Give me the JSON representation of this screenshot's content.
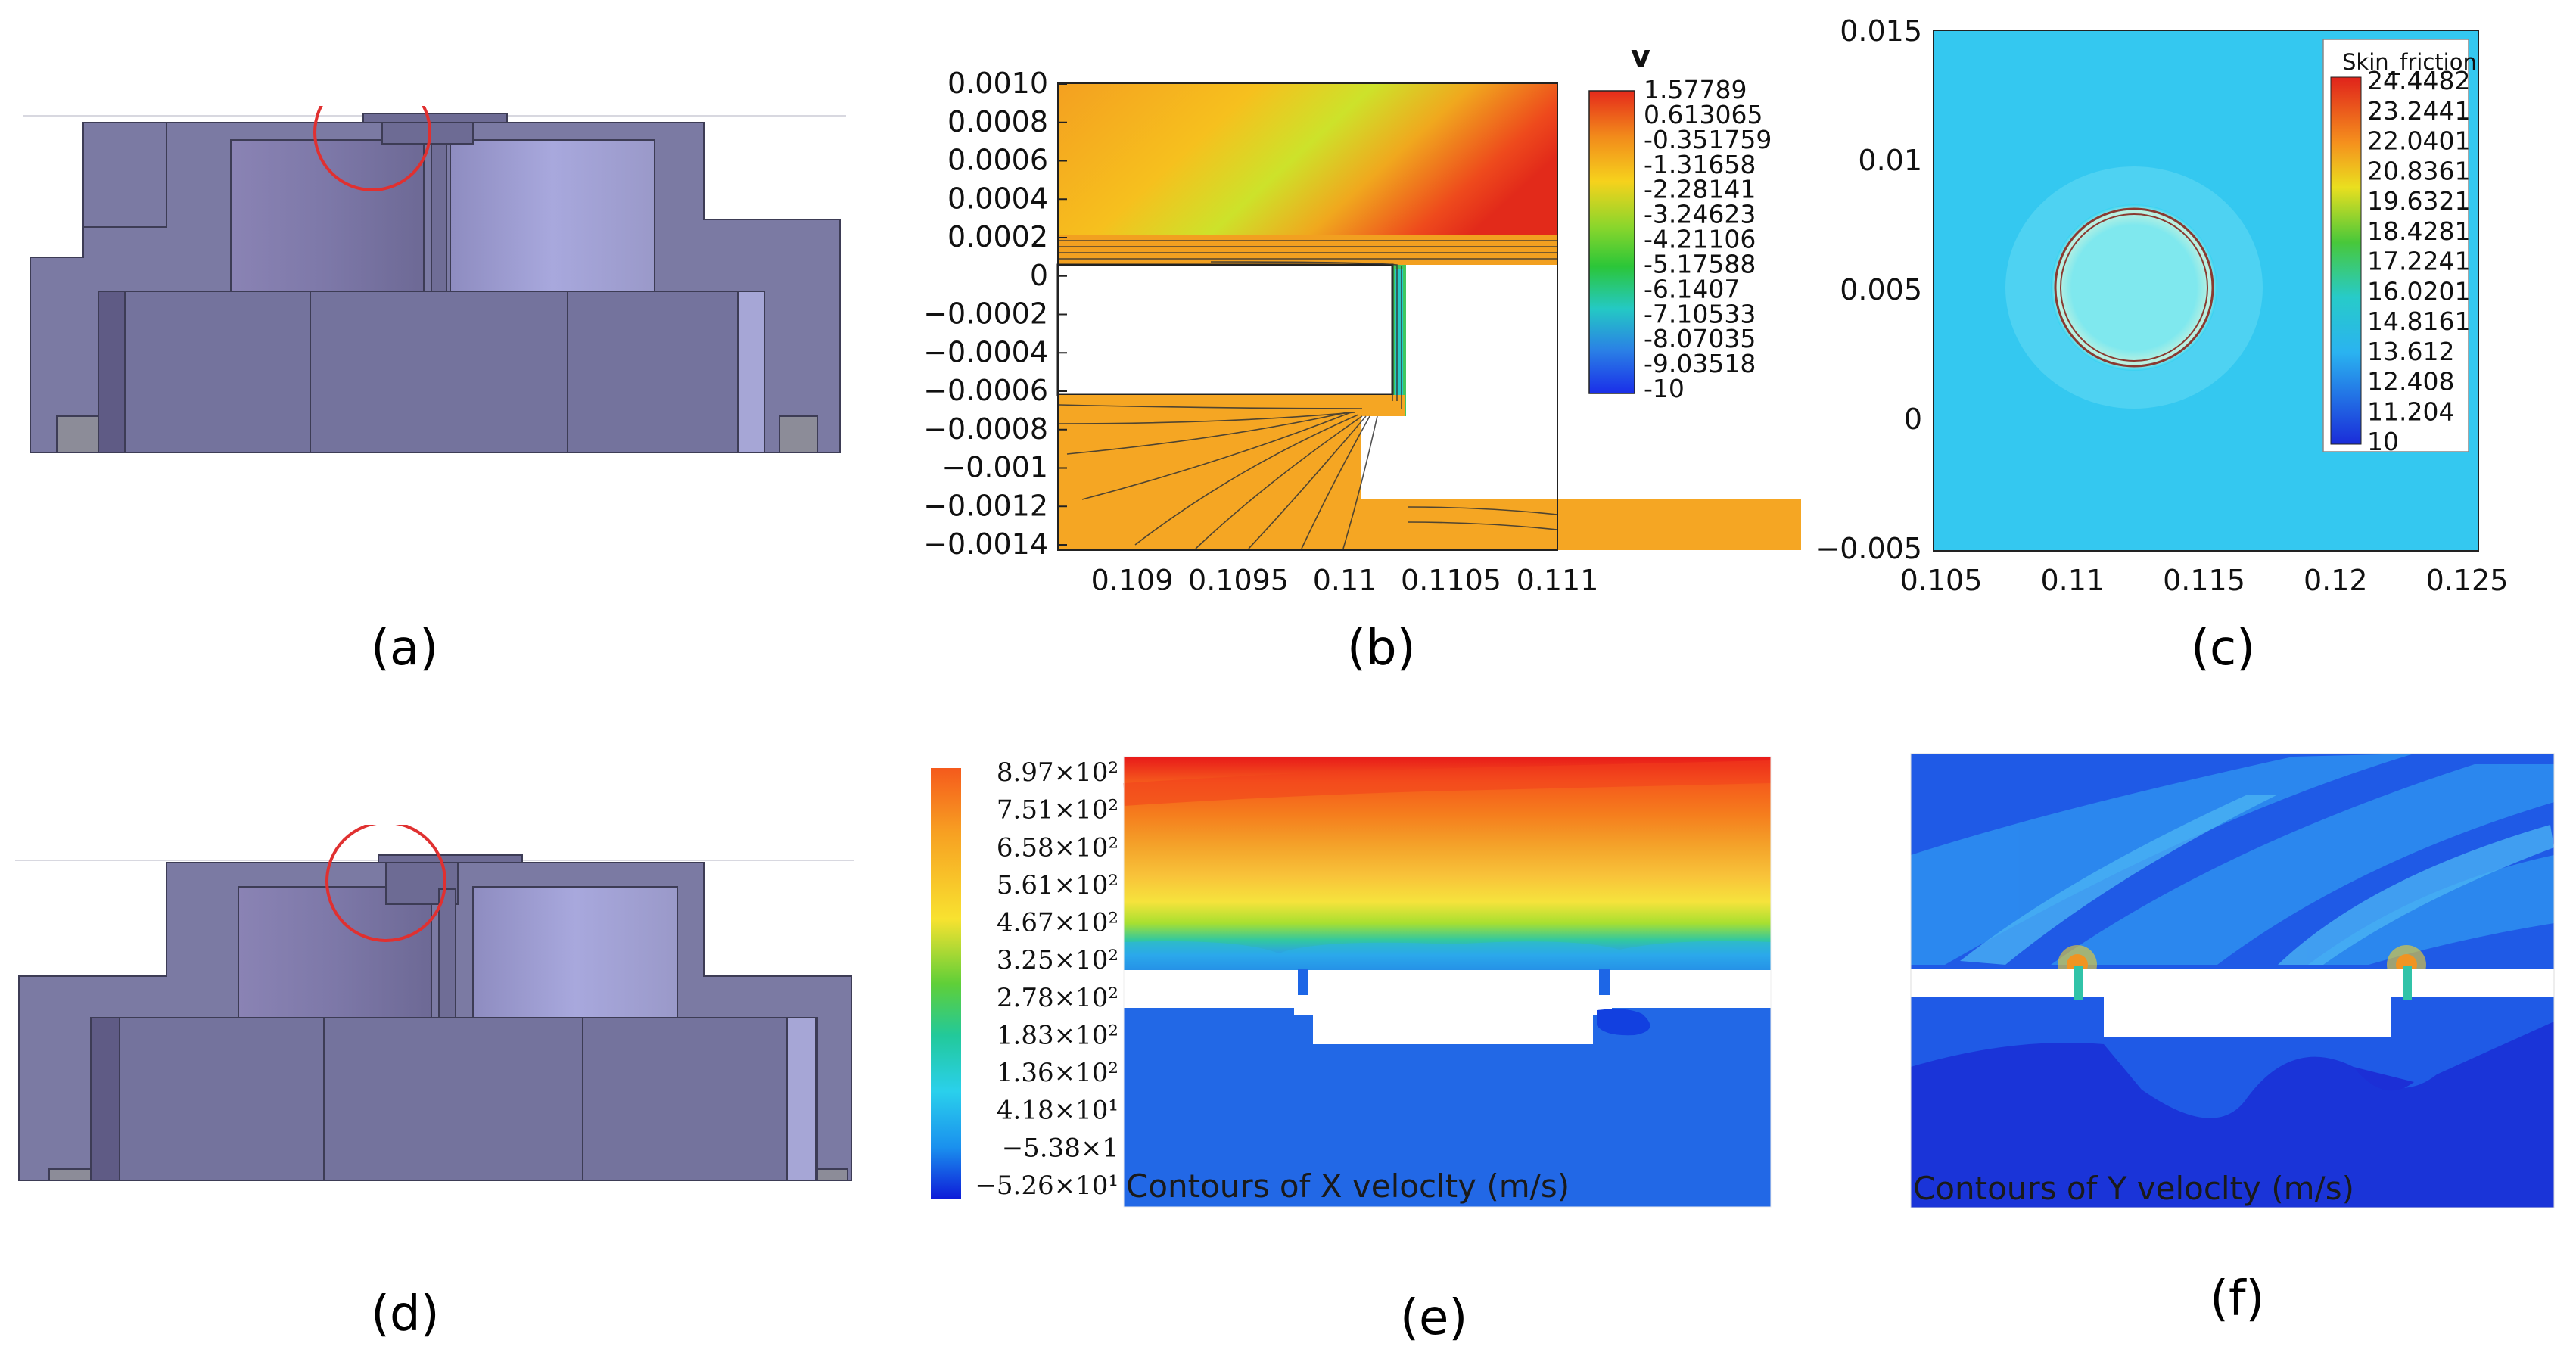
{
  "captions": [
    "(a)",
    "(b)",
    "(c)",
    "(d)",
    "(e)",
    "(f)"
  ],
  "panel_b": {
    "colorbar_title": "v",
    "colorbar_ticks": [
      "1.57789",
      "0.613065",
      "-0.351759",
      "-1.31658",
      "-2.28141",
      "-3.24623",
      "-4.21106",
      "-5.17588",
      "-6.1407",
      "-7.10533",
      "-8.07035",
      "-9.03518",
      "-10"
    ],
    "y_ticks": [
      "0.0010",
      "0.0008",
      "0.0006",
      "0.0004",
      "0.0002",
      "0",
      "−0.0002",
      "−0.0004",
      "−0.0006",
      "−0.0008",
      "−0.001",
      "−0.0012",
      "−0.0014"
    ],
    "x_ticks": [
      "0.109",
      "0.1095",
      "0.11",
      "0.1105",
      "0.111"
    ]
  },
  "panel_c": {
    "legend_title": "Skin_friction",
    "legend_ticks": [
      "24.4482",
      "23.2441",
      "22.0401",
      "20.8361",
      "19.6321",
      "18.4281",
      "17.2241",
      "16.0201",
      "14.8161",
      "13.612",
      "12.408",
      "11.204",
      "10"
    ],
    "y_ticks": [
      "0.015",
      "0.01",
      "0.005",
      "0",
      "−0.005"
    ],
    "x_ticks": [
      "0.105",
      "0.11",
      "0.115",
      "0.12",
      "0.125"
    ]
  },
  "panel_e": {
    "legend_ticks": [
      "8.97×10²",
      "7.51×10²",
      "6.58×10²",
      "5.61×10²",
      "4.67×10²",
      "3.25×10²",
      "2.78×10²",
      "1.83×10²",
      "1.36×10²",
      "4.18×10¹",
      "−5.38×1",
      "−5.26×10¹"
    ],
    "caption": "Contours of X veloclty (m/s)"
  },
  "panel_f": {
    "caption": "Contours of Y veloclty (m/s)"
  },
  "colors": {
    "model_body": "#7b7aa3",
    "model_edge": "#3d3c55",
    "highlight_circle": "#e03030"
  }
}
